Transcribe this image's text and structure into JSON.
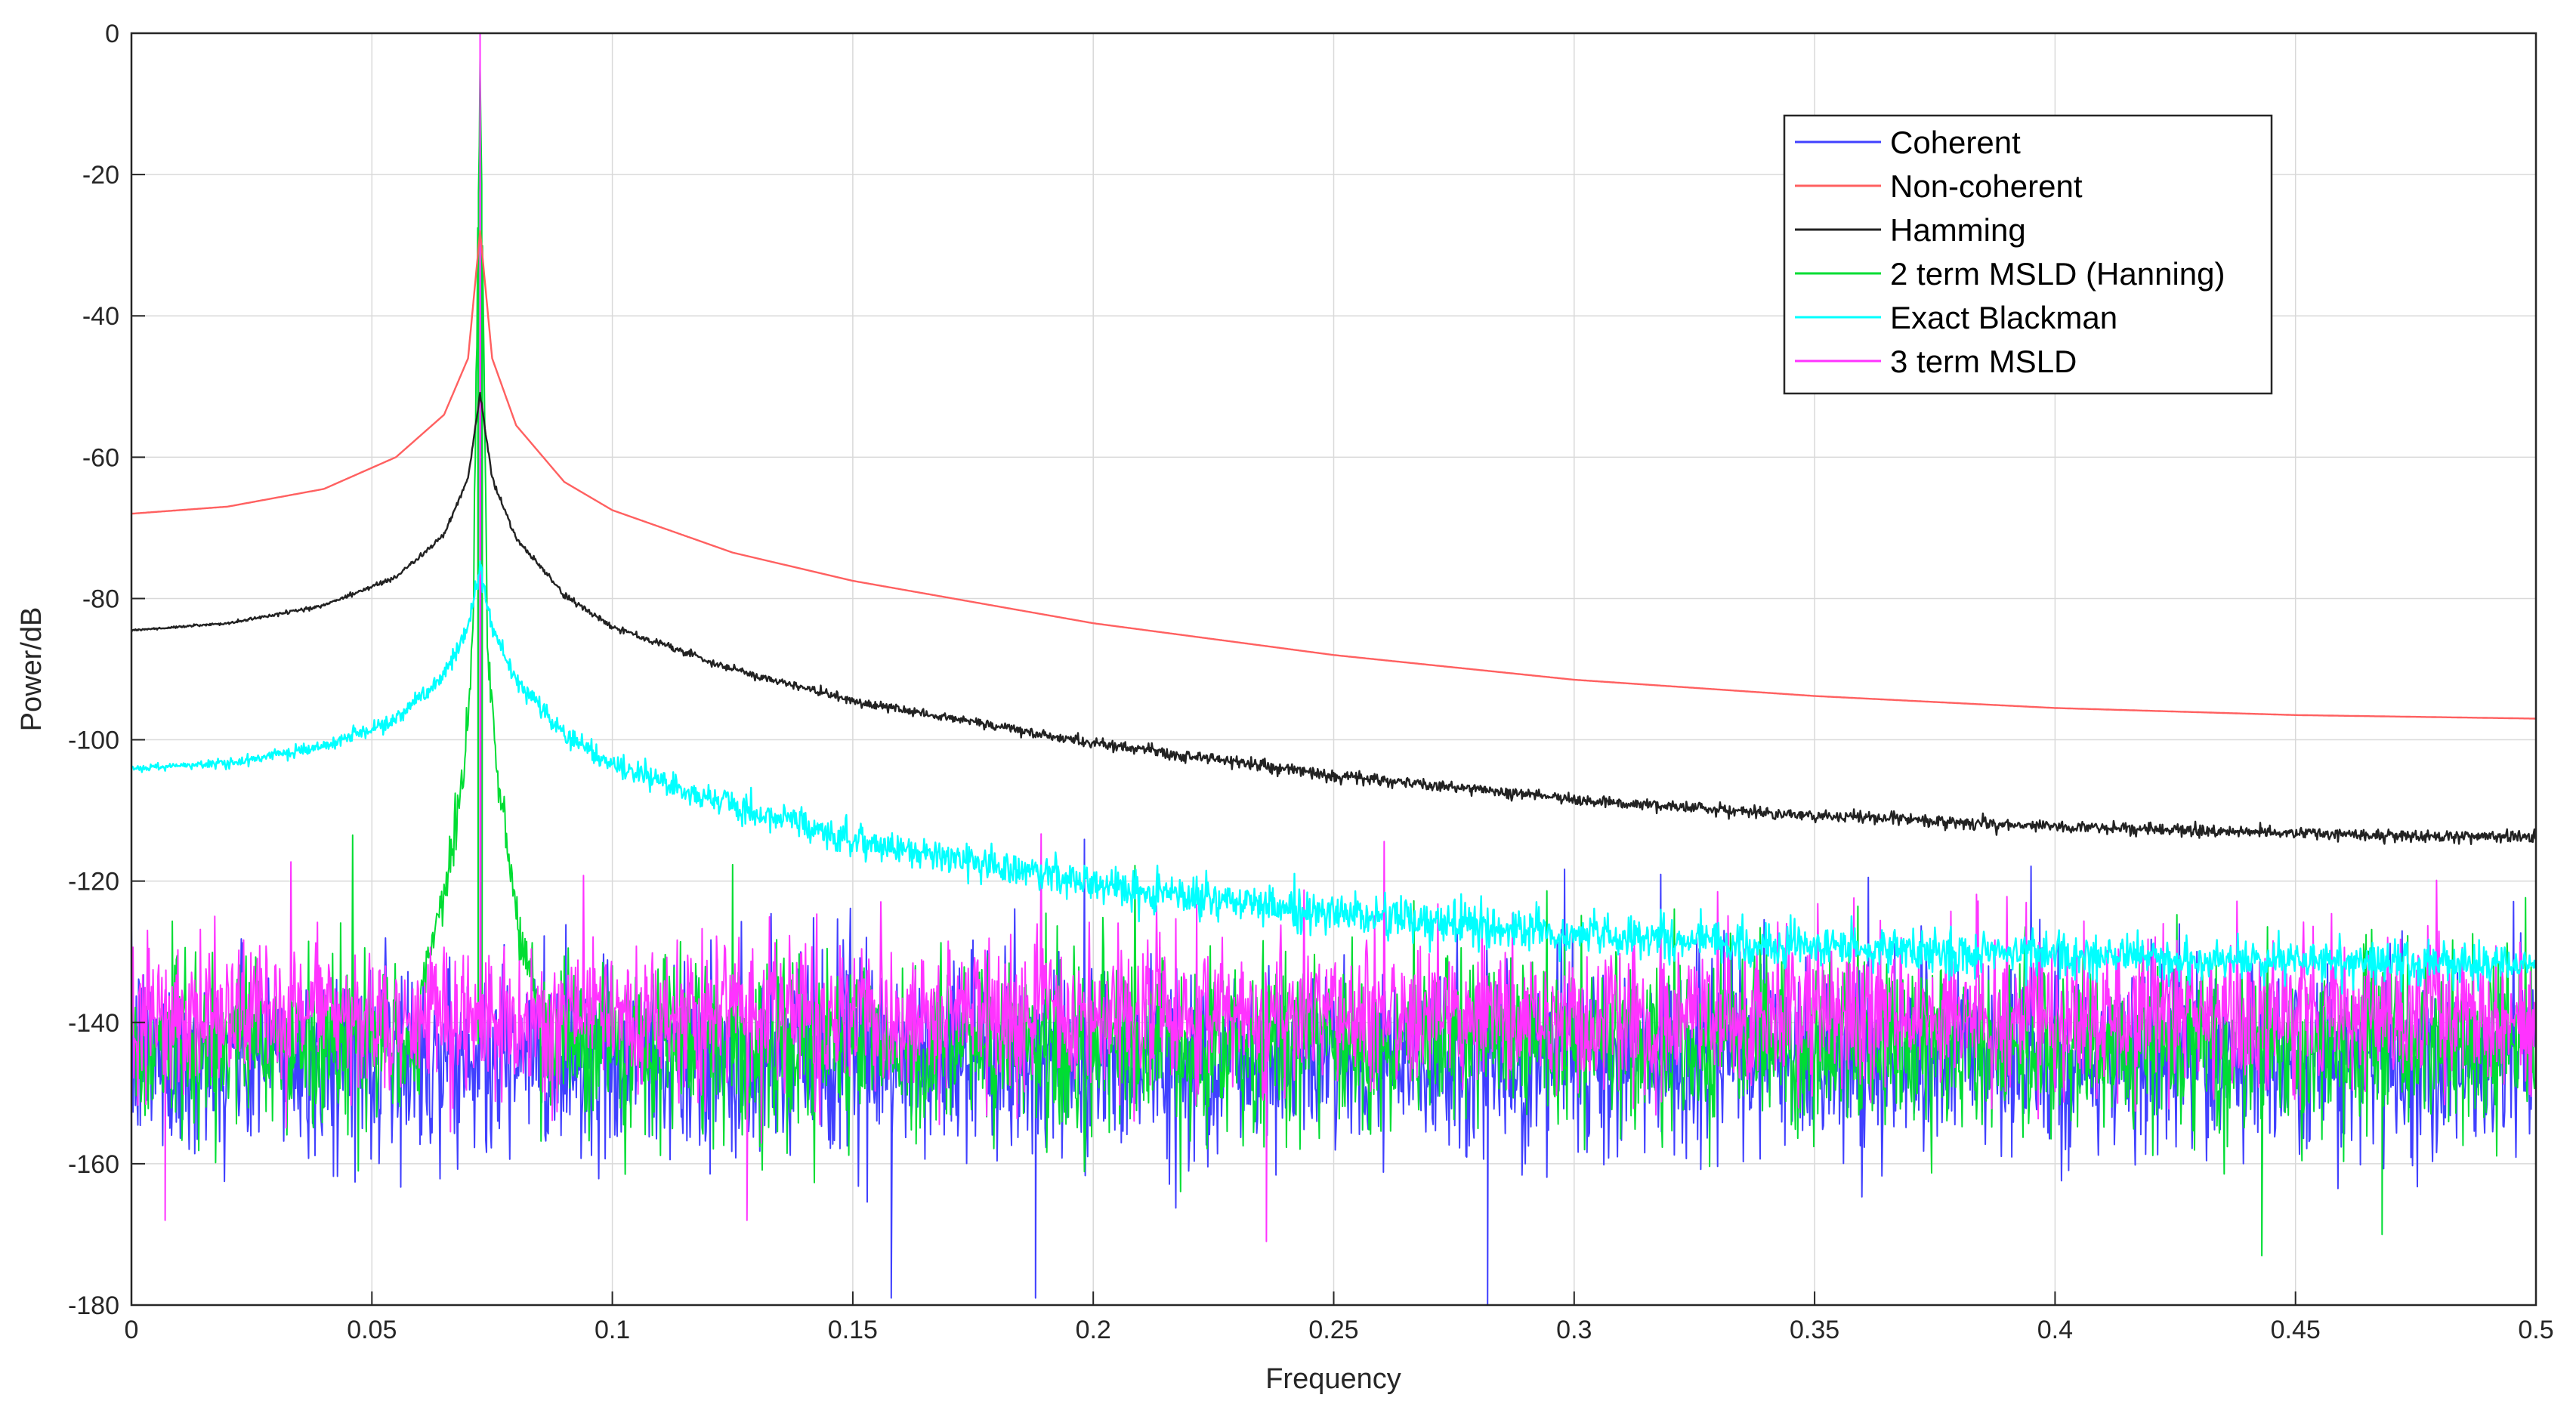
{
  "chart_data": {
    "type": "line",
    "title": "",
    "xlabel": "Frequency",
    "ylabel": "Power/dB",
    "xlim": [
      0,
      0.5
    ],
    "ylim": [
      -180,
      0
    ],
    "grid": true,
    "legend_position": "top-right",
    "x_ticks": [
      0,
      0.05,
      0.1,
      0.15,
      0.2,
      0.25,
      0.3,
      0.35,
      0.4,
      0.45,
      0.5
    ],
    "x_tick_labels": [
      "0",
      "0.05",
      "0.1",
      "0.15",
      "0.2",
      "0.25",
      "0.3",
      "0.35",
      "0.4",
      "0.45",
      "0.5"
    ],
    "y_ticks": [
      0,
      -20,
      -40,
      -60,
      -80,
      -100,
      -120,
      -140,
      -160,
      -180
    ],
    "y_tick_labels": [
      "0",
      "-20",
      "-40",
      "-60",
      "-80",
      "-100",
      "-120",
      "-140",
      "-160",
      "-180"
    ],
    "peak_frequency": 0.0725,
    "series": [
      {
        "name": "Coherent",
        "color": "#4040ff",
        "kind": "noise",
        "noise_mean_db": -145,
        "noise_spread_db": 8,
        "peak_db": -10,
        "dips": [
          [
            0.158,
            -179
          ],
          [
            0.188,
            -179
          ],
          [
            0.282,
            -180
          ]
        ]
      },
      {
        "name": "Non-coherent",
        "color": "#ff6060",
        "kind": "leakage",
        "x": [
          0,
          0.02,
          0.04,
          0.055,
          0.065,
          0.07,
          0.0725,
          0.075,
          0.08,
          0.09,
          0.1,
          0.125,
          0.15,
          0.2,
          0.25,
          0.3,
          0.35,
          0.4,
          0.45,
          0.5
        ],
        "values": [
          -68,
          -67,
          -64.5,
          -60,
          -54,
          -46,
          -28,
          -46,
          -55.5,
          -63.5,
          -67.5,
          -73.5,
          -77.5,
          -83.5,
          -88,
          -91.5,
          -93.8,
          -95.5,
          -96.5,
          -97
        ],
        "jitter_db": 0
      },
      {
        "name": "Hamming",
        "color": "#222222",
        "kind": "leakage",
        "x": [
          0,
          0.02,
          0.04,
          0.055,
          0.065,
          0.07,
          0.0725,
          0.075,
          0.08,
          0.09,
          0.1,
          0.125,
          0.15,
          0.2,
          0.25,
          0.3,
          0.35,
          0.4,
          0.45,
          0.5
        ],
        "values": [
          -84.5,
          -83.5,
          -81,
          -77,
          -71,
          -63,
          -51,
          -63,
          -71.5,
          -79.5,
          -84,
          -90,
          -94.5,
          -100.5,
          -105,
          -108.5,
          -110.8,
          -112.3,
          -113.3,
          -113.8
        ],
        "jitter_db": 0.7
      },
      {
        "name": "2 term MSLD (Hanning)",
        "color": "#00dd33",
        "kind": "noise",
        "noise_mean_db": -143,
        "noise_spread_db": 7,
        "peak_db": -5,
        "skirt": [
          [
            0.06,
            -135
          ],
          [
            0.063,
            -128
          ],
          [
            0.066,
            -118
          ],
          [
            0.069,
            -105
          ],
          [
            0.071,
            -85
          ],
          [
            0.0725,
            -5
          ],
          [
            0.074,
            -85
          ],
          [
            0.076,
            -105
          ],
          [
            0.079,
            -120
          ],
          [
            0.082,
            -132
          ],
          [
            0.085,
            -137
          ]
        ],
        "dips": [
          [
            0.443,
            -173
          ],
          [
            0.468,
            -170
          ]
        ]
      },
      {
        "name": "Exact Blackman",
        "color": "#00ffff",
        "kind": "leakage",
        "x": [
          0,
          0.02,
          0.04,
          0.055,
          0.065,
          0.07,
          0.0725,
          0.075,
          0.08,
          0.09,
          0.1,
          0.125,
          0.15,
          0.2,
          0.25,
          0.3,
          0.35,
          0.4,
          0.45,
          0.5
        ],
        "values": [
          -104,
          -103.3,
          -101,
          -97,
          -91,
          -84,
          -76,
          -84,
          -91.5,
          -99,
          -103.5,
          -109.5,
          -114,
          -120.5,
          -124.5,
          -127.5,
          -129.3,
          -130.5,
          -131.3,
          -132
        ],
        "jitter_db": 2.5
      },
      {
        "name": "3 term MSLD",
        "color": "#ff33ff",
        "kind": "noise",
        "noise_mean_db": -139,
        "noise_spread_db": 6,
        "peak_db": 0,
        "dips": [
          [
            0.007,
            -168
          ],
          [
            0.128,
            -168
          ],
          [
            0.236,
            -171
          ]
        ]
      }
    ]
  }
}
